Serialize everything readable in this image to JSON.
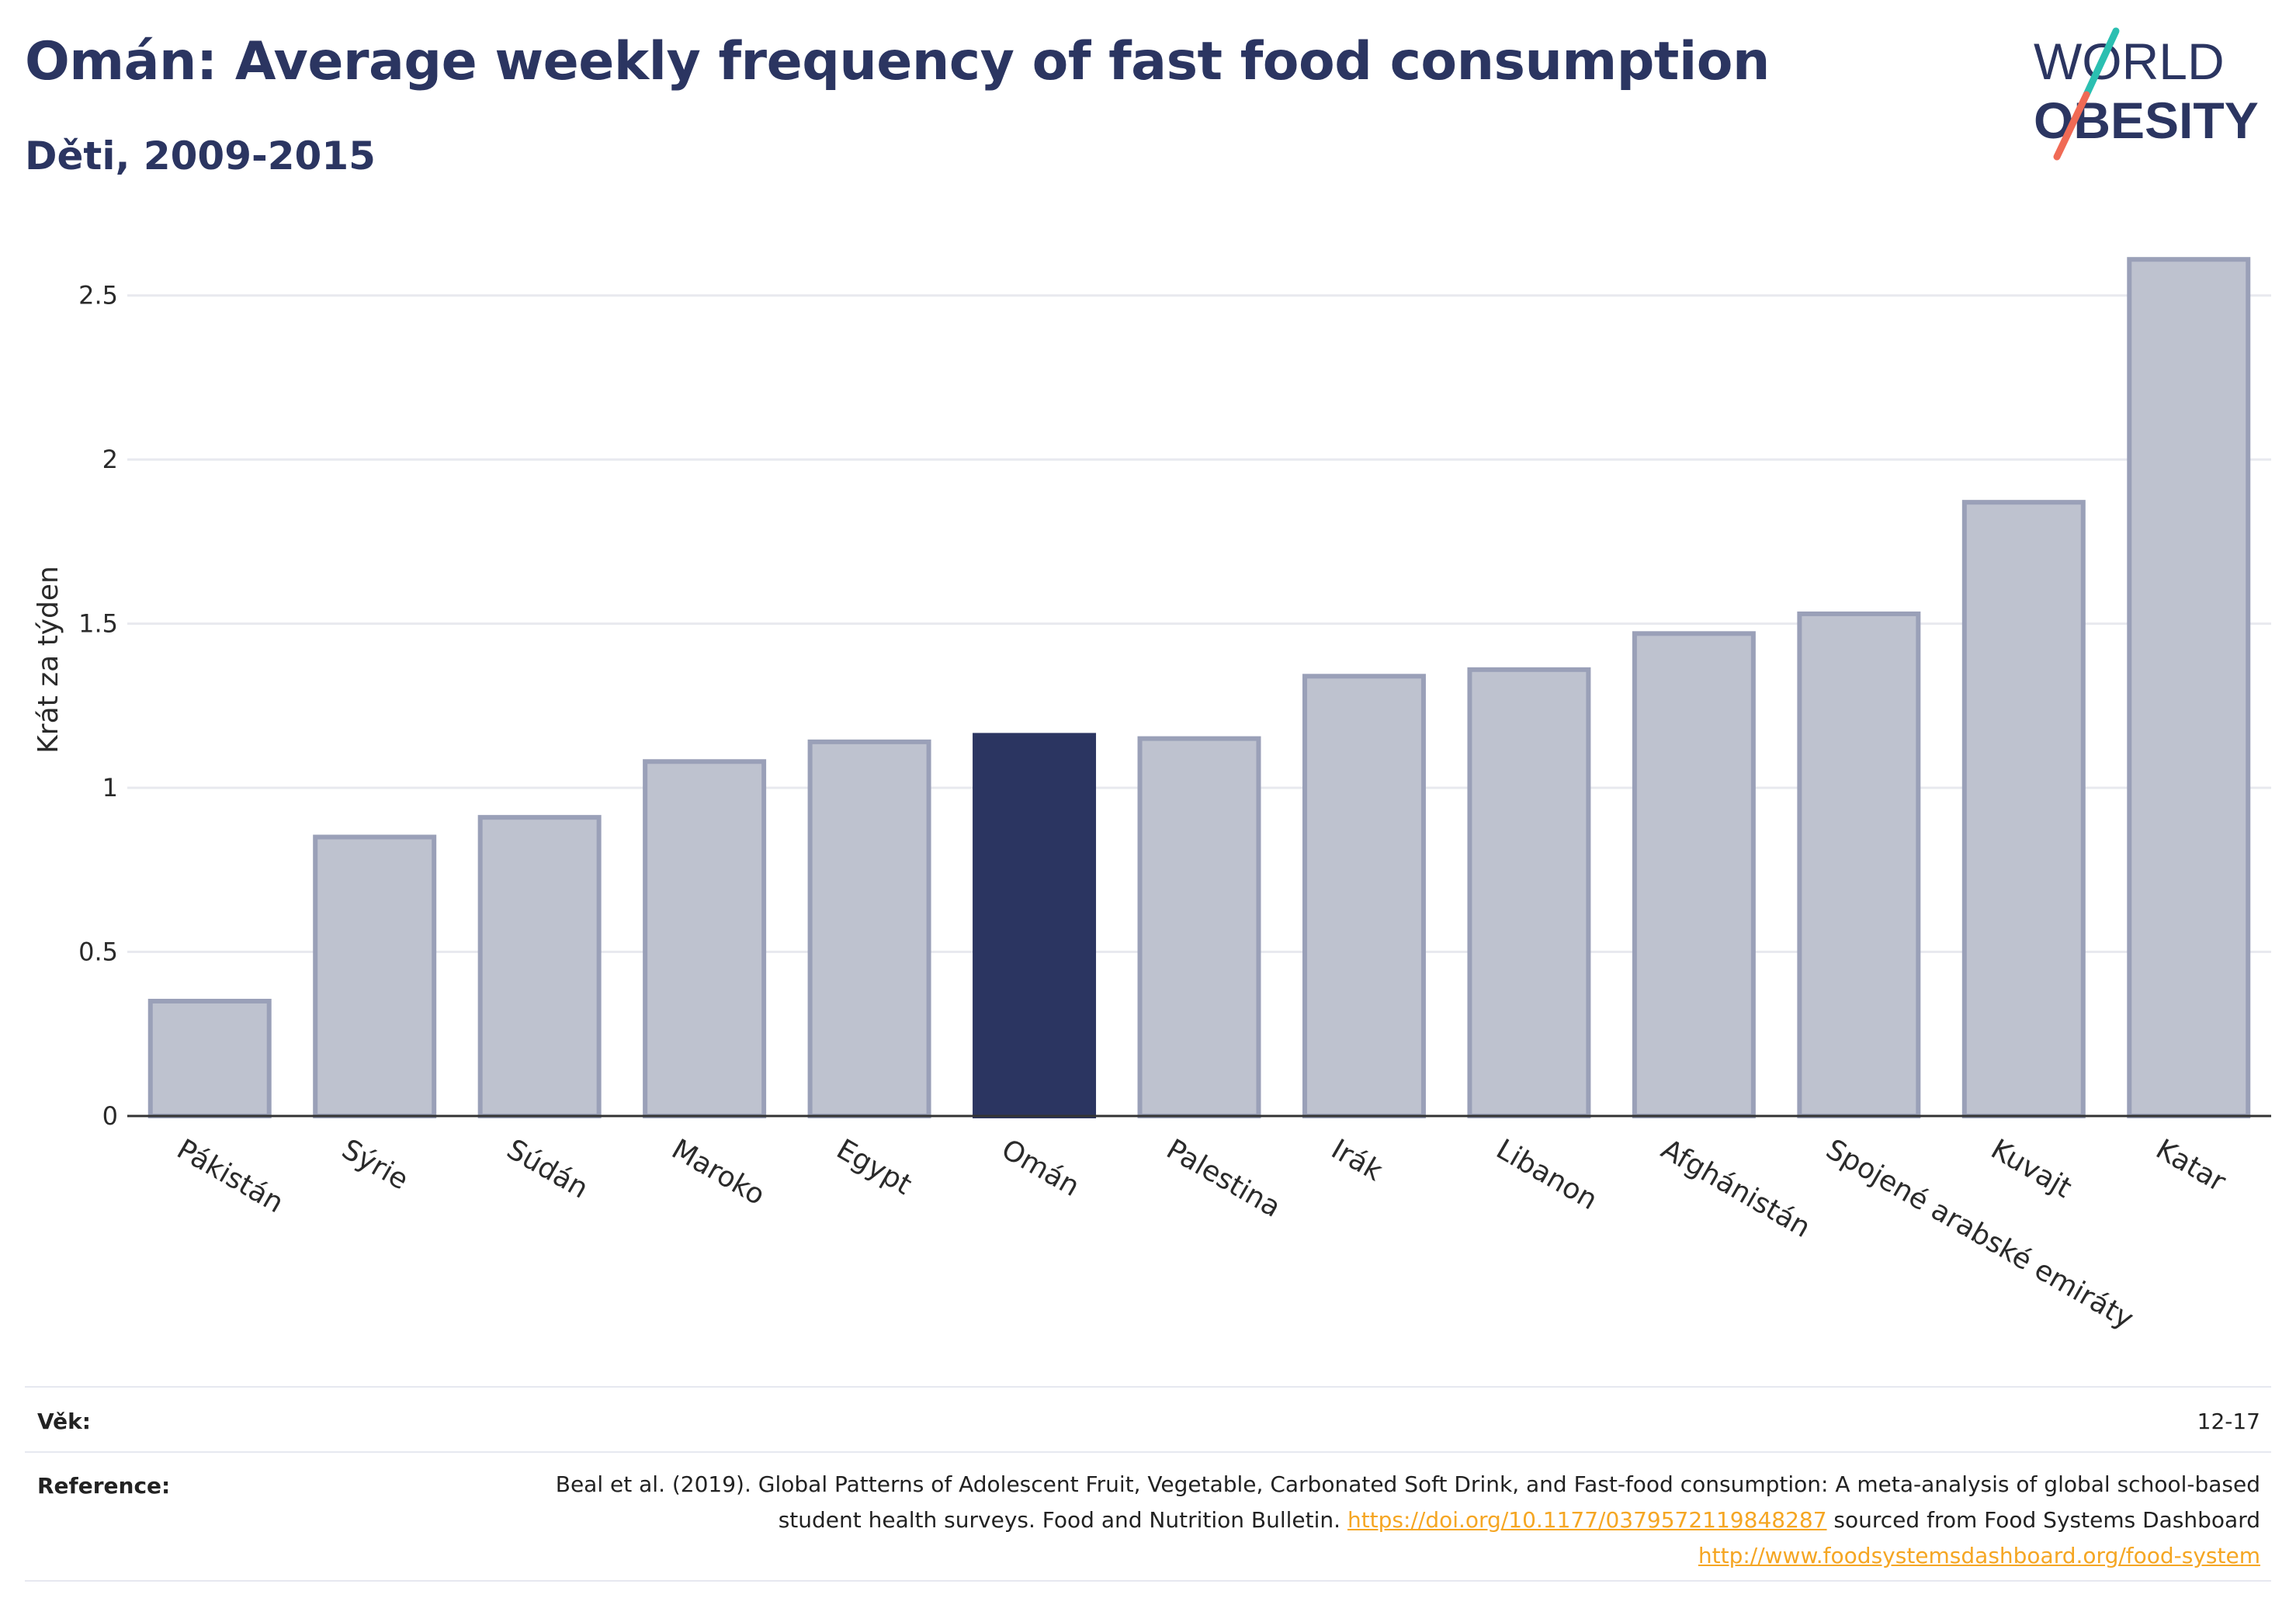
{
  "title": "Omán: Average weekly frequency of fast food consumption",
  "subtitle": "Děti, 2009-2015",
  "logo": {
    "line1": "WORLD",
    "line2": "OBESITY",
    "accent_colors": [
      "#2bbfb1",
      "#f06a55"
    ]
  },
  "chart_data": {
    "type": "bar",
    "categories": [
      "Pákistán",
      "Sýrie",
      "Súdán",
      "Maroko",
      "Egypt",
      "Omán",
      "Palestina",
      "Irák",
      "Libanon",
      "Afghánistán",
      "Spojené arabské emiráty",
      "Kuvajt",
      "Katar"
    ],
    "values": [
      0.35,
      0.85,
      0.91,
      1.08,
      1.14,
      1.16,
      1.15,
      1.34,
      1.36,
      1.47,
      1.53,
      1.87,
      2.61
    ],
    "highlight": "Omán",
    "ylabel": "Krát za týden",
    "xlabel": "",
    "ylim": [
      0,
      2.75
    ],
    "yticks": [
      "0",
      "0.5",
      "1",
      "1.5",
      "2",
      "2.5"
    ],
    "ytick_values": [
      0,
      0.5,
      1,
      1.5,
      2,
      2.5
    ],
    "grid": true,
    "colors": {
      "bar": "#bec2cf",
      "bar_edge": "#9aa0b8",
      "highlight": "#2b3561"
    }
  },
  "footer": {
    "age_label": "Věk:",
    "age_value": "12-17",
    "reference_label": "Reference:",
    "reference_text_1": "Beal et al. (2019). Global Patterns of Adolescent Fruit, Vegetable, Carbonated Soft Drink, and Fast-food consumption: A meta-analysis of global school-based student health surveys. Food and Nutrition Bulletin.",
    "reference_link_1": "https://doi.org/10.1177/0379572119848287",
    "reference_text_2": "sourced from Food Systems Dashboard",
    "reference_link_2": "http://www.foodsystemsdashboard.org/food-system"
  }
}
